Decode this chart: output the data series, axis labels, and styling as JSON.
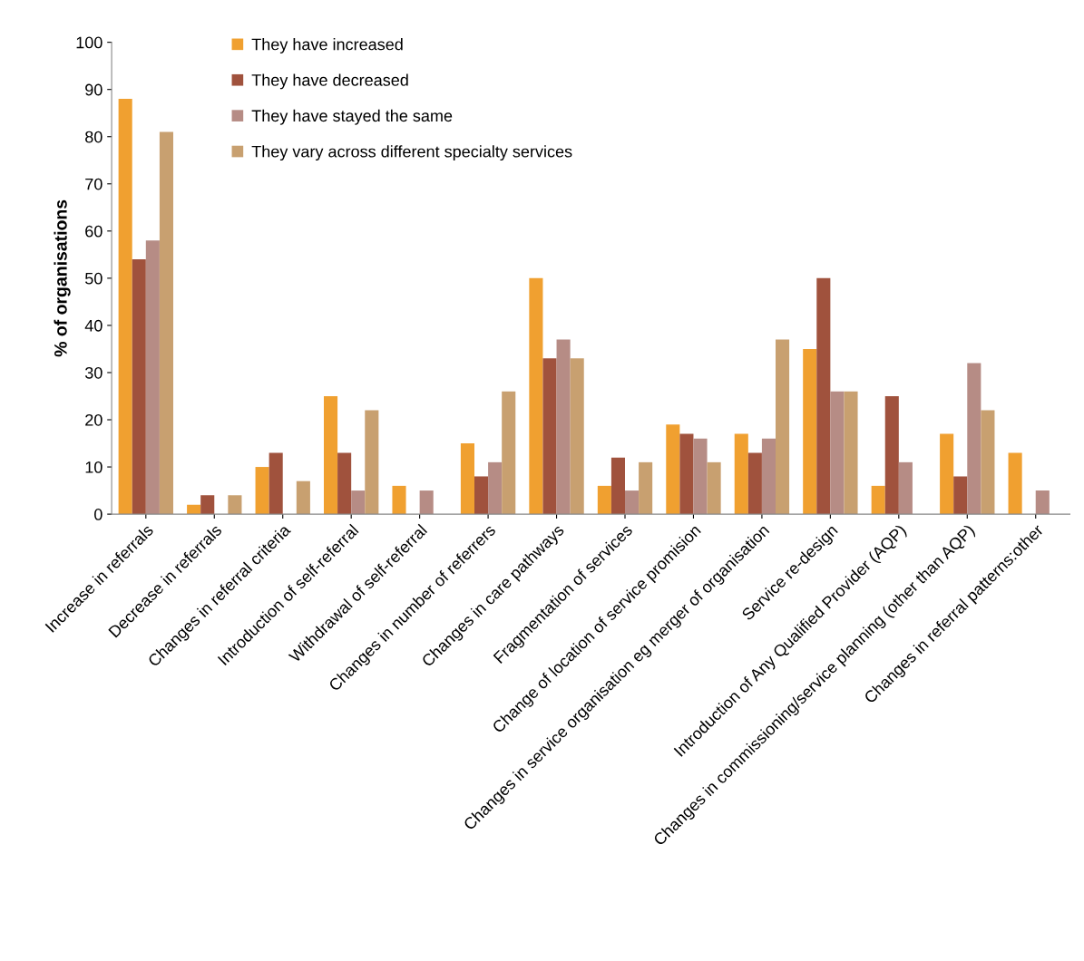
{
  "chart_data": {
    "type": "bar",
    "ylabel": "% of organisations",
    "categories": [
      "Increase in referrals",
      "Decrease in referrals",
      "Changes in referral criteria",
      "Introduction of self-referral",
      "Withdrawal of self-referral",
      "Changes in number of referrers",
      "Changes in care pathways",
      "Fragmentation of services",
      "Change of location of service promision",
      "Changes in service organisation eg merger of organisation",
      "Service re-design",
      "Introduction of Any Qualified Provider (AQP)",
      "Changes in commissioning/service planning (other than AQP)",
      "Changes in referral patterns:other"
    ],
    "series": [
      {
        "name": "They have increased",
        "color": "#f0a030",
        "values": [
          88,
          2,
          10,
          25,
          6,
          15,
          50,
          6,
          19,
          17,
          35,
          6,
          17,
          13
        ]
      },
      {
        "name": "They have decreased",
        "color": "#a0523d",
        "values": [
          54,
          4,
          13,
          13,
          null,
          8,
          33,
          12,
          17,
          13,
          50,
          25,
          8,
          null
        ]
      },
      {
        "name": "They have stayed the same",
        "color": "#b68c85",
        "values": [
          58,
          null,
          null,
          5,
          5,
          11,
          37,
          5,
          16,
          16,
          26,
          11,
          32,
          5
        ]
      },
      {
        "name": "They vary across different specialty services",
        "color": "#c8a070",
        "values": [
          81,
          4,
          7,
          22,
          null,
          26,
          33,
          11,
          11,
          37,
          26,
          null,
          22,
          null
        ]
      }
    ],
    "ylim": [
      0,
      100
    ],
    "yticks": [
      0,
      10,
      20,
      30,
      40,
      50,
      60,
      70,
      80,
      90,
      100
    ],
    "grid": false,
    "legend": "top left"
  }
}
